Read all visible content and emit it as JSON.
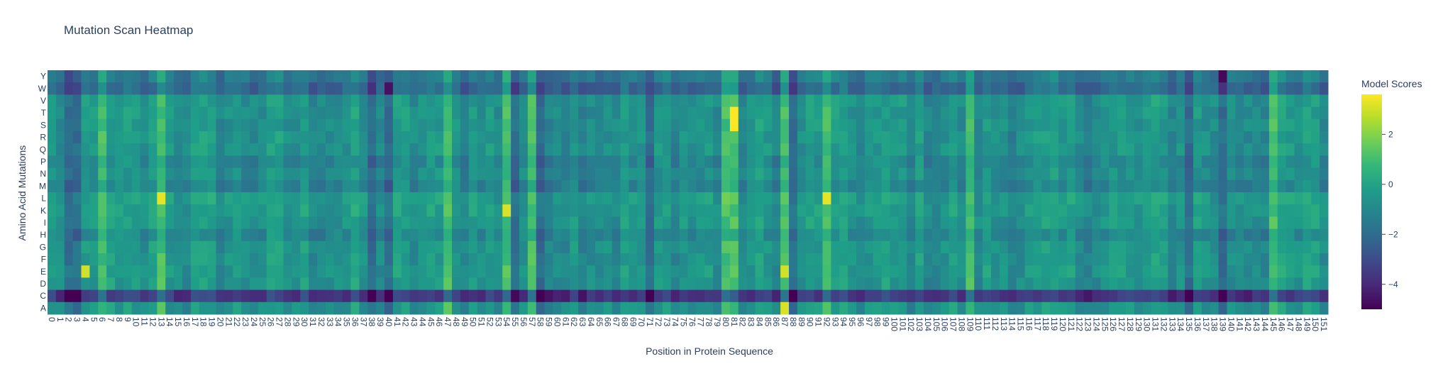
{
  "chart_data": {
    "type": "heatmap",
    "title": "Mutation Scan Heatmap",
    "xlabel": "Position in Protein Sequence",
    "ylabel": "Amino Acid Mutations",
    "x_start": 0,
    "x_end": 151,
    "rows": [
      "Y",
      "W",
      "V",
      "T",
      "S",
      "R",
      "Q",
      "P",
      "N",
      "M",
      "L",
      "K",
      "I",
      "H",
      "G",
      "F",
      "E",
      "D",
      "C",
      "A"
    ],
    "colorscale": "Viridis",
    "colorbar": {
      "title": "Model Scores",
      "min": -5.0,
      "max": 3.6,
      "ticks": [
        2,
        0,
        -2,
        -4
      ]
    },
    "notable": {
      "hot_columns": [
        6,
        13,
        47,
        54,
        57,
        80,
        81,
        87,
        92,
        109,
        145
      ],
      "cold_columns": [
        2,
        3,
        38,
        40,
        55,
        58,
        71,
        88,
        135,
        139
      ],
      "hot_cells": [
        {
          "row": "T",
          "x": 81,
          "value": 3.6
        },
        {
          "row": "S",
          "x": 81,
          "value": 3.6
        },
        {
          "row": "L",
          "x": 13,
          "value": 3.3
        },
        {
          "row": "L",
          "x": 92,
          "value": 3.3
        },
        {
          "row": "K",
          "x": 54,
          "value": 3.1
        },
        {
          "row": "E",
          "x": 4,
          "value": 3.0
        },
        {
          "row": "E",
          "x": 87,
          "value": 3.0
        },
        {
          "row": "A",
          "x": 87,
          "value": 3.1
        }
      ],
      "cold_cells": [
        {
          "row": "C",
          "x": 38,
          "value": -5.0
        },
        {
          "row": "C",
          "x": 40,
          "value": -5.0
        },
        {
          "row": "C",
          "x": 55,
          "value": -4.8
        },
        {
          "row": "Y",
          "x": 139,
          "value": -4.8
        },
        {
          "row": "W",
          "x": 40,
          "value": -4.6
        }
      ]
    }
  }
}
